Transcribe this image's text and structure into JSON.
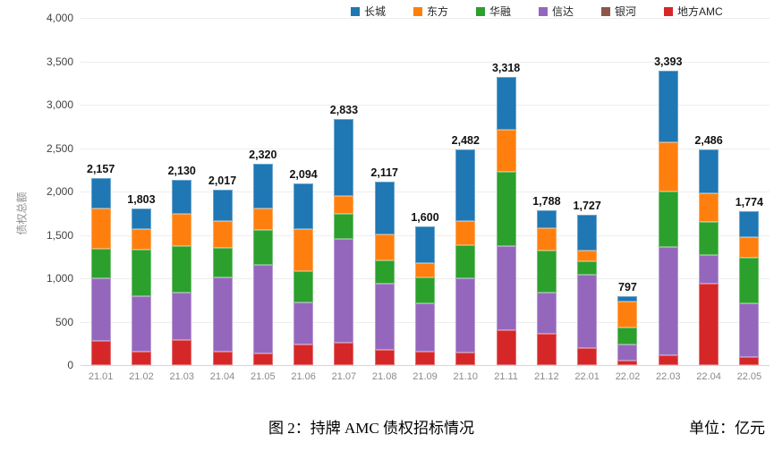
{
  "figure": {
    "caption": "图 2：持牌 AMC 债权招标情况",
    "unit_label": "单位：亿元"
  },
  "chart_data": {
    "type": "bar",
    "stacked": true,
    "title": "图 2：持牌 AMC 债权招标情况",
    "unit": "亿元",
    "ylabel": "债权总额",
    "xlabel": "",
    "ylim": [
      0,
      4000
    ],
    "ytick_step": 500,
    "yticks": [
      0,
      500,
      1000,
      1500,
      2000,
      2500,
      3000,
      3500,
      4000
    ],
    "grid": "horizontal",
    "legend_position": "top",
    "categories": [
      "21.01",
      "21.02",
      "21.03",
      "21.04",
      "21.05",
      "21.06",
      "21.07",
      "21.08",
      "21.09",
      "21.10",
      "21.11",
      "21.12",
      "22.01",
      "22.02",
      "22.03",
      "22.04",
      "22.05"
    ],
    "series": [
      {
        "name": "长城",
        "color": "#1f77b4",
        "values": [
          352,
          231,
          390,
          362,
          517,
          524,
          889,
          608,
          421,
          822,
          609,
          212,
          407,
          65,
          823,
          508,
          297
        ]
      },
      {
        "name": "东方",
        "color": "#ff7f0e",
        "values": [
          465,
          239,
          370,
          300,
          245,
          487,
          202,
          302,
          168,
          278,
          482,
          259,
          128,
          300,
          565,
          325,
          242
        ]
      },
      {
        "name": "华融",
        "color": "#2ca02c",
        "values": [
          345,
          538,
          530,
          345,
          408,
          358,
          292,
          270,
          298,
          380,
          852,
          482,
          150,
          195,
          645,
          385,
          520
        ]
      },
      {
        "name": "信达",
        "color": "#9467bd",
        "values": [
          715,
          640,
          550,
          855,
          1015,
          488,
          1190,
          762,
          555,
          860,
          975,
          472,
          850,
          190,
          1245,
          333,
          620
        ]
      },
      {
        "name": "银河",
        "color": "#8c564b",
        "values": [
          0,
          0,
          0,
          0,
          0,
          0,
          0,
          0,
          0,
          0,
          0,
          0,
          0,
          0,
          0,
          0,
          0
        ]
      },
      {
        "name": "地方AMC",
        "color": "#d62728",
        "values": [
          280,
          155,
          290,
          155,
          135,
          237,
          260,
          175,
          158,
          142,
          400,
          363,
          192,
          47,
          115,
          935,
          95
        ]
      }
    ],
    "stack_order_bottom_to_top": [
      "地方AMC",
      "银河",
      "信达",
      "华融",
      "东方",
      "长城"
    ],
    "totals": [
      2157,
      1803,
      2130,
      2017,
      2320,
      2094,
      2833,
      2117,
      1600,
      2482,
      3318,
      1788,
      1727,
      797,
      3393,
      2486,
      1774
    ]
  }
}
